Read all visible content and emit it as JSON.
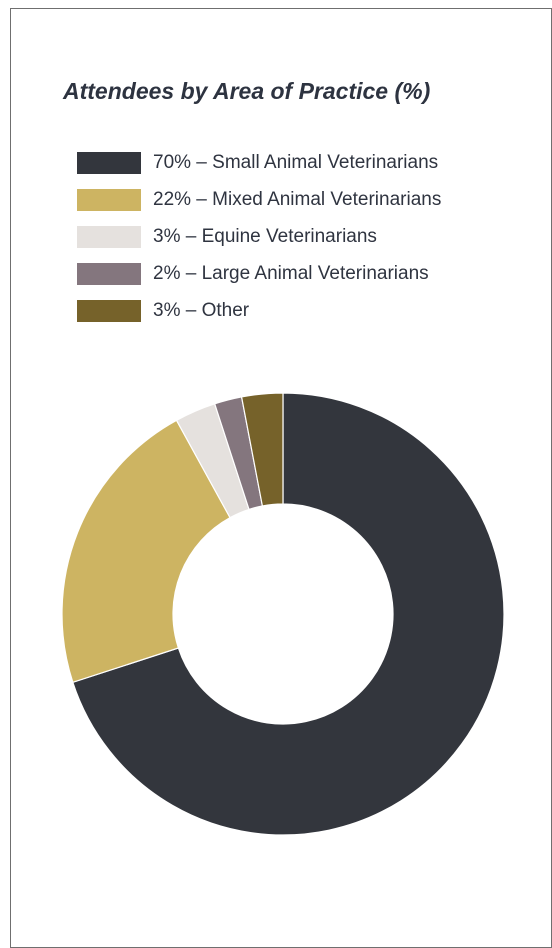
{
  "chart_data": {
    "type": "pie",
    "variant": "donut",
    "title": "Attendees by Area of Practice (%)",
    "legend_position": "top-left",
    "start_angle_degrees": 0,
    "direction": "clockwise",
    "slices": [
      {
        "legend_label": "70% – Small Animal Veterinarians",
        "value": 70,
        "color": "#33363d"
      },
      {
        "legend_label": "22% – Mixed Animal Veterinarians",
        "value": 22,
        "color": "#cdb462"
      },
      {
        "legend_label": "3% – Equine Veterinarians",
        "value": 3,
        "color": "#e5e1de"
      },
      {
        "legend_label": "2% – Large Animal Veterinarians",
        "value": 2,
        "color": "#84767e"
      },
      {
        "legend_label": "3%  – Other",
        "value": 3,
        "color": "#76622a"
      }
    ]
  }
}
